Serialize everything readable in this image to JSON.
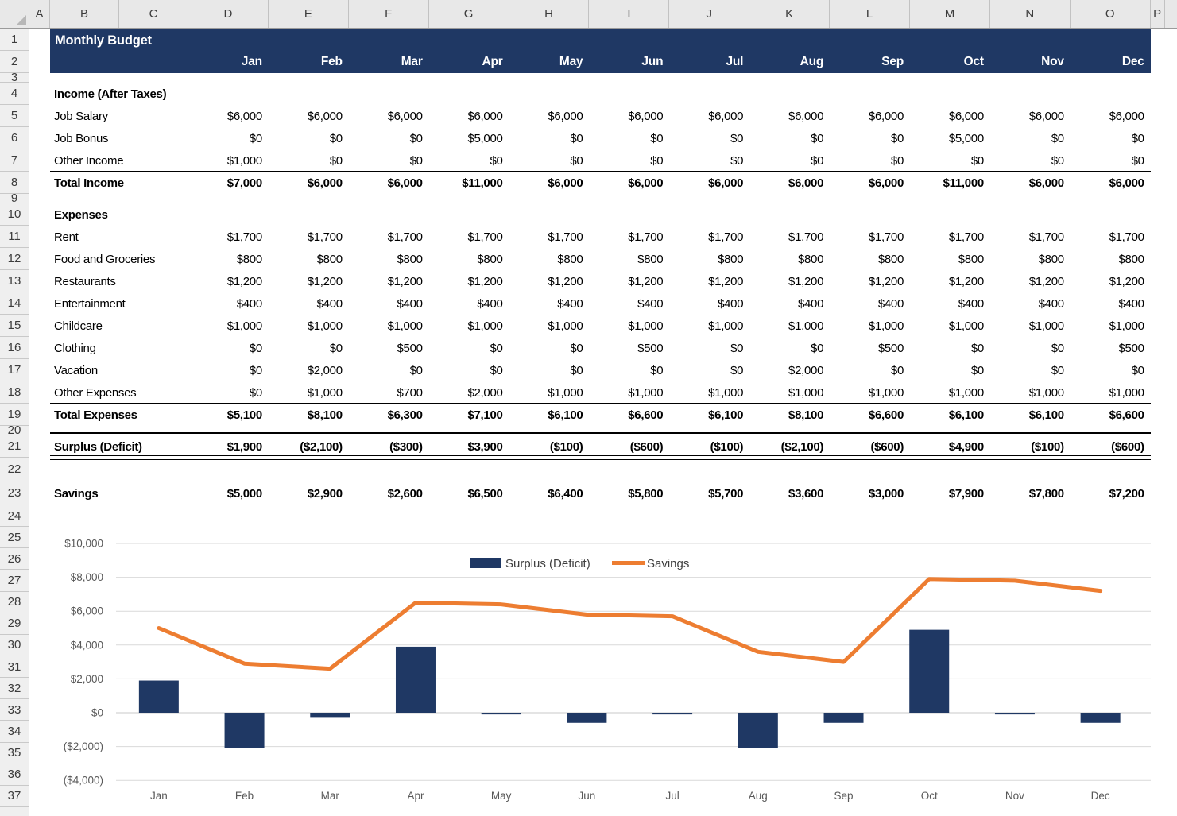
{
  "grid": {
    "column_letters": [
      "A",
      "B",
      "C",
      "D",
      "E",
      "F",
      "G",
      "H",
      "I",
      "J",
      "K",
      "L",
      "M",
      "N",
      "O",
      "P"
    ],
    "row_count": 37,
    "collapsed_row_numbers": [
      3,
      9,
      20
    ]
  },
  "sheet": {
    "title": "Monthly Budget",
    "month_headers": [
      "Jan",
      "Feb",
      "Mar",
      "Apr",
      "May",
      "Jun",
      "Jul",
      "Aug",
      "Sep",
      "Oct",
      "Nov",
      "Dec"
    ],
    "rows": [
      {
        "row": 4,
        "kind": "section",
        "label": "Income (After Taxes)"
      },
      {
        "row": 5,
        "kind": "item",
        "label": "Job Salary",
        "values": [
          "$6,000",
          "$6,000",
          "$6,000",
          "$6,000",
          "$6,000",
          "$6,000",
          "$6,000",
          "$6,000",
          "$6,000",
          "$6,000",
          "$6,000",
          "$6,000"
        ]
      },
      {
        "row": 6,
        "kind": "item",
        "label": "Job Bonus",
        "values": [
          "$0",
          "$0",
          "$0",
          "$5,000",
          "$0",
          "$0",
          "$0",
          "$0",
          "$0",
          "$5,000",
          "$0",
          "$0"
        ]
      },
      {
        "row": 7,
        "kind": "item",
        "label": "Other Income",
        "values": [
          "$1,000",
          "$0",
          "$0",
          "$0",
          "$0",
          "$0",
          "$0",
          "$0",
          "$0",
          "$0",
          "$0",
          "$0"
        ],
        "rule_below": true
      },
      {
        "row": 8,
        "kind": "total",
        "label": "Total Income",
        "values": [
          "$7,000",
          "$6,000",
          "$6,000",
          "$11,000",
          "$6,000",
          "$6,000",
          "$6,000",
          "$6,000",
          "$6,000",
          "$11,000",
          "$6,000",
          "$6,000"
        ]
      },
      {
        "row": 10,
        "kind": "section",
        "label": "Expenses"
      },
      {
        "row": 11,
        "kind": "item",
        "label": "Rent",
        "values": [
          "$1,700",
          "$1,700",
          "$1,700",
          "$1,700",
          "$1,700",
          "$1,700",
          "$1,700",
          "$1,700",
          "$1,700",
          "$1,700",
          "$1,700",
          "$1,700"
        ]
      },
      {
        "row": 12,
        "kind": "item",
        "label": "Food and Groceries",
        "values": [
          "$800",
          "$800",
          "$800",
          "$800",
          "$800",
          "$800",
          "$800",
          "$800",
          "$800",
          "$800",
          "$800",
          "$800"
        ]
      },
      {
        "row": 13,
        "kind": "item",
        "label": "Restaurants",
        "values": [
          "$1,200",
          "$1,200",
          "$1,200",
          "$1,200",
          "$1,200",
          "$1,200",
          "$1,200",
          "$1,200",
          "$1,200",
          "$1,200",
          "$1,200",
          "$1,200"
        ]
      },
      {
        "row": 14,
        "kind": "item",
        "label": "Entertainment",
        "values": [
          "$400",
          "$400",
          "$400",
          "$400",
          "$400",
          "$400",
          "$400",
          "$400",
          "$400",
          "$400",
          "$400",
          "$400"
        ]
      },
      {
        "row": 15,
        "kind": "item",
        "label": "Childcare",
        "values": [
          "$1,000",
          "$1,000",
          "$1,000",
          "$1,000",
          "$1,000",
          "$1,000",
          "$1,000",
          "$1,000",
          "$1,000",
          "$1,000",
          "$1,000",
          "$1,000"
        ]
      },
      {
        "row": 16,
        "kind": "item",
        "label": "Clothing",
        "values": [
          "$0",
          "$0",
          "$500",
          "$0",
          "$0",
          "$500",
          "$0",
          "$0",
          "$500",
          "$0",
          "$0",
          "$500"
        ]
      },
      {
        "row": 17,
        "kind": "item",
        "label": "Vacation",
        "values": [
          "$0",
          "$2,000",
          "$0",
          "$0",
          "$0",
          "$0",
          "$0",
          "$2,000",
          "$0",
          "$0",
          "$0",
          "$0"
        ]
      },
      {
        "row": 18,
        "kind": "item",
        "label": "Other Expenses",
        "values": [
          "$0",
          "$1,000",
          "$700",
          "$2,000",
          "$1,000",
          "$1,000",
          "$1,000",
          "$1,000",
          "$1,000",
          "$1,000",
          "$1,000",
          "$1,000"
        ],
        "rule_below": true
      },
      {
        "row": 19,
        "kind": "total",
        "label": "Total Expenses",
        "values": [
          "$5,100",
          "$8,100",
          "$6,300",
          "$7,100",
          "$6,100",
          "$6,600",
          "$6,100",
          "$8,100",
          "$6,600",
          "$6,100",
          "$6,100",
          "$6,600"
        ]
      },
      {
        "row": 21,
        "kind": "total",
        "label": "Surplus (Deficit)",
        "values": [
          "$1,900",
          "($2,100)",
          "($300)",
          "$3,900",
          "($100)",
          "($600)",
          "($100)",
          "($2,100)",
          "($600)",
          "$4,900",
          "($100)",
          "($600)"
        ],
        "rule_above": true,
        "double_rule_below": true
      },
      {
        "row": 23,
        "kind": "total",
        "label": "Savings",
        "values": [
          "$5,000",
          "$2,900",
          "$2,600",
          "$6,500",
          "$6,400",
          "$5,800",
          "$5,700",
          "$3,600",
          "$3,000",
          "$7,900",
          "$7,800",
          "$7,200"
        ]
      }
    ]
  },
  "chart_data": {
    "type": "combo",
    "categories": [
      "Jan",
      "Feb",
      "Mar",
      "Apr",
      "May",
      "Jun",
      "Jul",
      "Aug",
      "Sep",
      "Oct",
      "Nov",
      "Dec"
    ],
    "series": [
      {
        "name": "Surplus (Deficit)",
        "type": "bar",
        "color": "#1F3864",
        "values": [
          1900,
          -2100,
          -300,
          3900,
          -100,
          -600,
          -100,
          -2100,
          -600,
          4900,
          -100,
          -600
        ]
      },
      {
        "name": "Savings",
        "type": "line",
        "color": "#ED7D31",
        "values": [
          5000,
          2900,
          2600,
          6500,
          6400,
          5800,
          5700,
          3600,
          3000,
          7900,
          7800,
          7200
        ]
      }
    ],
    "y_axis": {
      "min": -4000,
      "max": 10000,
      "step": 2000,
      "ticks": [
        {
          "value": 10000,
          "label": "$10,000"
        },
        {
          "value": 8000,
          "label": "$8,000"
        },
        {
          "value": 6000,
          "label": "$6,000"
        },
        {
          "value": 4000,
          "label": "$4,000"
        },
        {
          "value": 2000,
          "label": "$2,000"
        },
        {
          "value": 0,
          "label": "$0"
        },
        {
          "value": -2000,
          "label": "($2,000)"
        },
        {
          "value": -4000,
          "label": "($4,000)"
        }
      ]
    },
    "legend_position": "top-center",
    "gridlines": true,
    "colors": {
      "gridline": "#D9D9D9",
      "zero_line": "#C8C8C8",
      "axis_text": "#595959",
      "legend_text": "#3f3f3f"
    }
  }
}
